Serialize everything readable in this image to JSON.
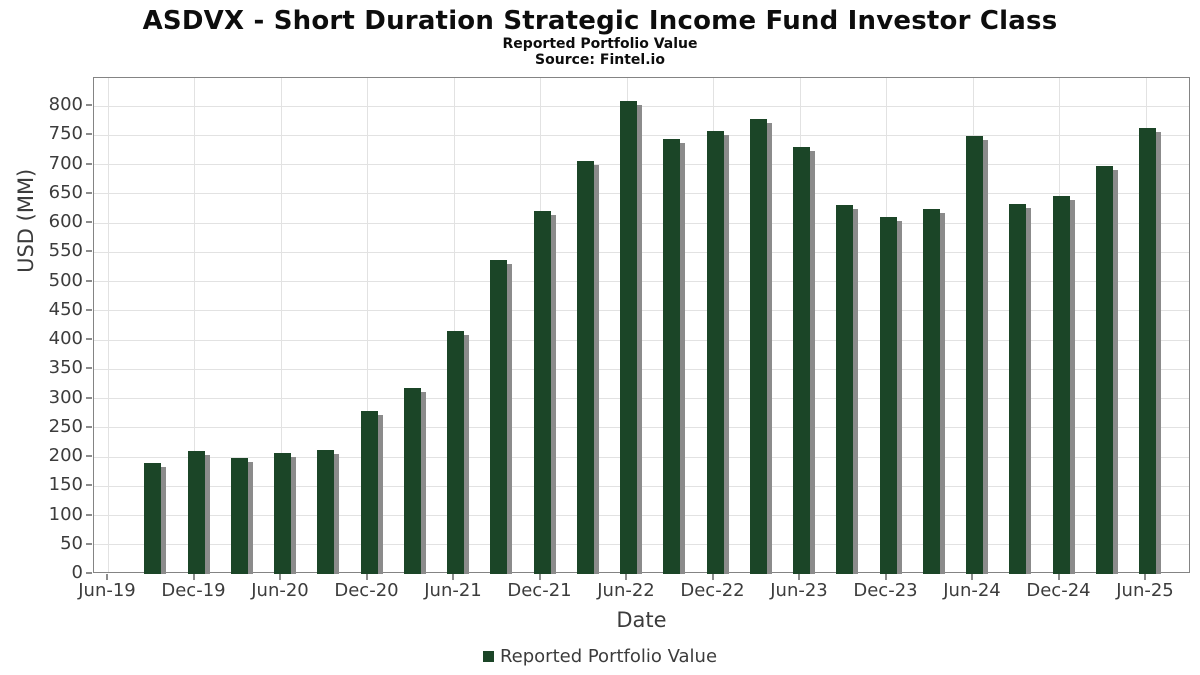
{
  "figure": {
    "title": "ASDVX - Short Duration Strategic Income Fund Investor Class",
    "subtitle": "Reported Portfolio Value",
    "source": "Source: Fintel.io"
  },
  "axes": {
    "x_label": "Date",
    "y_label": "USD (MM)"
  },
  "legend": {
    "label": "Reported Portfolio Value"
  },
  "colors": {
    "bar": "#1b4527",
    "bar_shadow": "#8b8b8b",
    "gridline": "#e2e2e2",
    "plot_border": "#848484",
    "tick_text": "#3c3c3c"
  },
  "chart_data": {
    "type": "bar",
    "title": "ASDVX - Short Duration Strategic Income Fund Investor Class",
    "subtitle": "Reported Portfolio Value",
    "source": "Source: Fintel.io",
    "xlabel": "Date",
    "ylabel": "USD (MM)",
    "ylim": [
      0,
      848
    ],
    "y_ticks": [
      0,
      50,
      100,
      150,
      200,
      250,
      300,
      350,
      400,
      450,
      500,
      550,
      600,
      650,
      700,
      750,
      800
    ],
    "x_tick_labels": [
      "Jun-19",
      "Dec-19",
      "Jun-20",
      "Dec-20",
      "Jun-21",
      "Dec-21",
      "Jun-22",
      "Dec-22",
      "Jun-23",
      "Dec-23",
      "Jun-24",
      "Dec-24",
      "Jun-25"
    ],
    "grid": true,
    "legend_position": "bottom",
    "series_name": "Reported Portfolio Value",
    "categories": [
      "Sep-19",
      "Dec-19",
      "Mar-20",
      "Jun-20",
      "Sep-20",
      "Dec-20",
      "Mar-21",
      "Jun-21",
      "Sep-21",
      "Dec-21",
      "Mar-22",
      "Jun-22",
      "Sep-22",
      "Dec-22",
      "Mar-23",
      "Jun-23",
      "Sep-23",
      "Dec-23",
      "Mar-24",
      "Jun-24",
      "Sep-24",
      "Dec-24",
      "Mar-25",
      "Jun-25"
    ],
    "values": [
      189,
      210,
      199,
      207,
      212,
      279,
      318,
      416,
      536,
      620,
      706,
      808,
      743,
      757,
      778,
      730,
      631,
      611,
      624,
      749,
      633,
      647,
      698,
      763
    ]
  }
}
